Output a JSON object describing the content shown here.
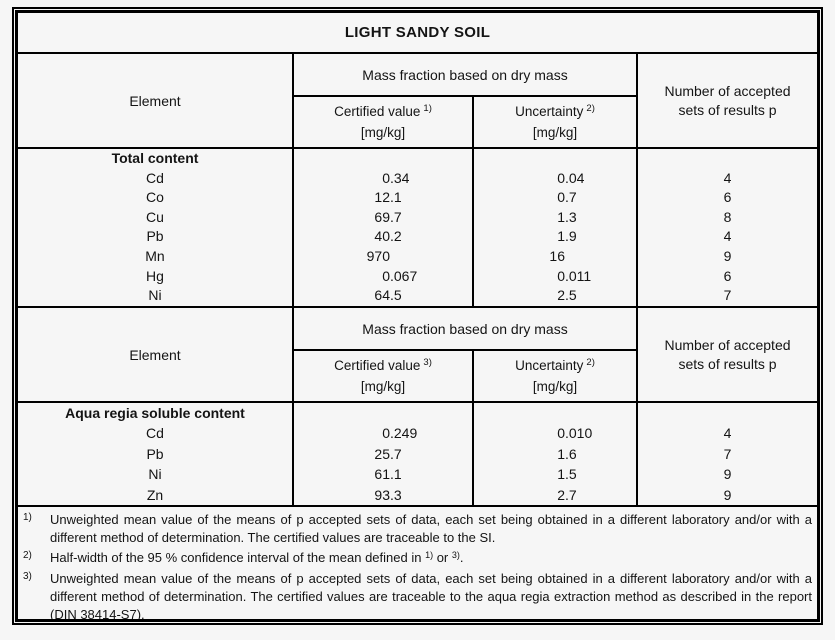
{
  "title": "LIGHT SANDY SOIL",
  "colors": {
    "border": "#000000",
    "background": "#f6f6f6",
    "text": "#141414"
  },
  "sections": [
    {
      "header": {
        "element_label": "Element",
        "mass_fraction_label": "Mass fraction based on dry mass",
        "certified_label": "Certified value",
        "certified_sup": "1)",
        "certified_unit": "[mg/kg]",
        "uncertainty_label": "Uncertainty",
        "uncertainty_sup": "2)",
        "uncertainty_unit": "[mg/kg]",
        "accepted_label": "Number of accepted sets of results p"
      },
      "group_label": "Total content",
      "rows": [
        {
          "element": "Cd",
          "certified": "0.34",
          "uncertainty": "0.04",
          "p": "4"
        },
        {
          "element": "Co",
          "certified": "12.1",
          "uncertainty": "0.7",
          "p": "6"
        },
        {
          "element": "Cu",
          "certified": "69.7",
          "uncertainty": "1.3",
          "p": "8"
        },
        {
          "element": "Pb",
          "certified": "40.2",
          "uncertainty": "1.9",
          "p": "4"
        },
        {
          "element": "Mn",
          "certified": "970",
          "uncertainty": "16",
          "p": "9"
        },
        {
          "element": "Hg",
          "certified": "0.067",
          "uncertainty": "0.011",
          "p": "6"
        },
        {
          "element": "Ni",
          "certified": "64.5",
          "uncertainty": "2.5",
          "p": "7"
        }
      ]
    },
    {
      "header": {
        "element_label": "Element",
        "mass_fraction_label": "Mass fraction based on dry mass",
        "certified_label": "Certified value",
        "certified_sup": "3)",
        "certified_unit": "[mg/kg]",
        "uncertainty_label": "Uncertainty",
        "uncertainty_sup": "2)",
        "uncertainty_unit": "[mg/kg]",
        "accepted_label": "Number of accepted sets of results p"
      },
      "group_label": "Aqua regia soluble content",
      "rows": [
        {
          "element": "Cd",
          "certified": "0.249",
          "uncertainty": "0.010",
          "p": "4"
        },
        {
          "element": "Pb",
          "certified": "25.7",
          "uncertainty": "1.6",
          "p": "7"
        },
        {
          "element": "Ni",
          "certified": "61.1",
          "uncertainty": "1.5",
          "p": "9"
        },
        {
          "element": "Zn",
          "certified": "93.3",
          "uncertainty": "2.7",
          "p": "9"
        }
      ]
    }
  ],
  "footnotes": [
    {
      "marker": "1)",
      "text": "Unweighted mean value of the means of p accepted sets of data, each set being obtained in a different laboratory and/or with a different method of determination. The certified values are traceable to the SI."
    },
    {
      "marker": "2)",
      "text_before": "Half-width of the 95 % confidence interval of the mean defined in ",
      "sup_a": "1)",
      "text_mid": " or ",
      "sup_b": "3)",
      "text_after": "."
    },
    {
      "marker": "3)",
      "text": "Unweighted mean value of the means of p accepted sets of data, each set being obtained in a different laboratory and/or with a different method of determination. The certified values are traceable to the aqua regia extraction method as described in the report (DIN 38414-S7)."
    }
  ]
}
